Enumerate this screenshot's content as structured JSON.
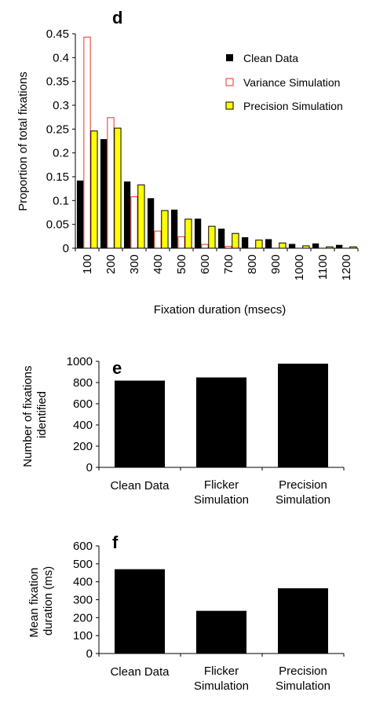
{
  "chart_data": [
    {
      "type": "bar",
      "panel": "d",
      "xlabel": "Fixation duration (msecs)",
      "ylabel": "Proportion of total fixations",
      "ylim": [
        0,
        0.45
      ],
      "yticks": [
        "0",
        "0.05",
        "0.1",
        "0.15",
        "0.2",
        "0.25",
        "0.3",
        "0.35",
        "0.4",
        "0.45"
      ],
      "categories": [
        "100",
        "200",
        "300",
        "400",
        "500",
        "600",
        "700",
        "800",
        "900",
        "1000",
        "1100",
        "1200"
      ],
      "legend_position": "top-right",
      "series": [
        {
          "name": "Clean Data",
          "color": "#000000",
          "stroke": "#000000",
          "values": [
            0.142,
            0.229,
            0.14,
            0.105,
            0.081,
            0.062,
            0.041,
            0.023,
            0.019,
            0.009,
            0.01,
            0.007
          ]
        },
        {
          "name": "Variance Simulation",
          "color": "#ffffff",
          "stroke": "#e8302a",
          "values": [
            0.443,
            0.274,
            0.108,
            0.036,
            0.024,
            0.008,
            0.004,
            0.0,
            0.0,
            0.0,
            0.0,
            0.0
          ]
        },
        {
          "name": "Precision Simulation",
          "color": "#ffff00",
          "stroke": "#000000",
          "values": [
            0.246,
            0.252,
            0.133,
            0.079,
            0.061,
            0.046,
            0.031,
            0.017,
            0.011,
            0.005,
            0.003,
            0.003
          ]
        }
      ]
    },
    {
      "type": "bar",
      "panel": "e",
      "xlabel": "",
      "ylabel": "Number of fixations identified",
      "ylim": [
        0,
        1000
      ],
      "yticks": [
        "0",
        "200",
        "400",
        "600",
        "800",
        "1000"
      ],
      "categories": [
        "Clean Data",
        "Flicker Simulation",
        "Precision Simulation"
      ],
      "values": [
        818,
        848,
        978
      ],
      "color": "#000000"
    },
    {
      "type": "bar",
      "panel": "f",
      "xlabel": "",
      "ylabel": "Mean fixation duration (ms)",
      "ylim": [
        0,
        600
      ],
      "yticks": [
        "0",
        "100",
        "200",
        "300",
        "400",
        "500",
        "600"
      ],
      "categories": [
        "Clean Data",
        "Flicker Simulation",
        "Precision Simulation"
      ],
      "values": [
        470,
        238,
        364
      ],
      "color": "#000000"
    }
  ]
}
